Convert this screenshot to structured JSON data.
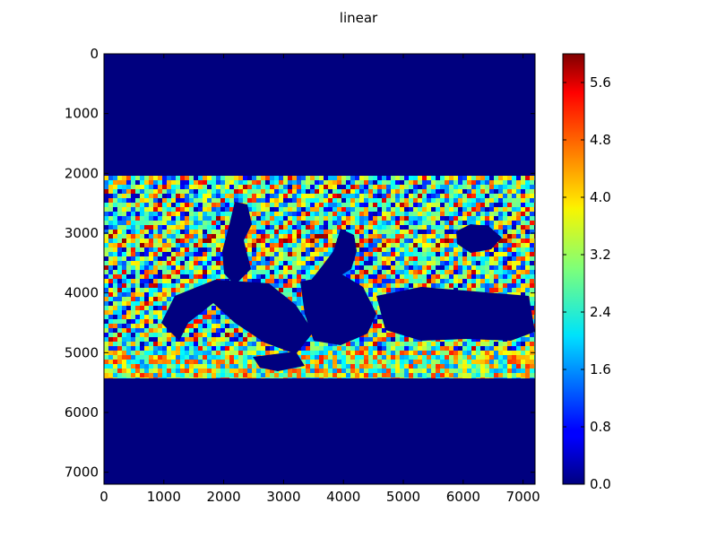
{
  "chart_data": {
    "type": "heatmap",
    "title": "linear",
    "x_ticks": [
      0,
      1000,
      2000,
      3000,
      4000,
      5000,
      6000,
      7000
    ],
    "y_ticks": [
      0,
      1000,
      2000,
      3000,
      4000,
      5000,
      6000,
      7000
    ],
    "x_range": [
      0,
      7200
    ],
    "y_range": [
      0,
      7200
    ],
    "y_inverted": true,
    "colormap": "jet",
    "color_range": [
      0,
      6.0
    ],
    "colorbar_ticks": [
      0.0,
      0.8,
      1.6,
      2.4,
      3.2,
      4.0,
      4.8,
      5.6
    ],
    "colorbar_tick_labels": [
      "0.0",
      "0.8",
      "1.6",
      "2.4",
      "3.2",
      "4.0",
      "4.8",
      "5.6"
    ],
    "background_value": 0.0,
    "data_extent_y": [
      2050,
      5420
    ],
    "grid": false
  }
}
